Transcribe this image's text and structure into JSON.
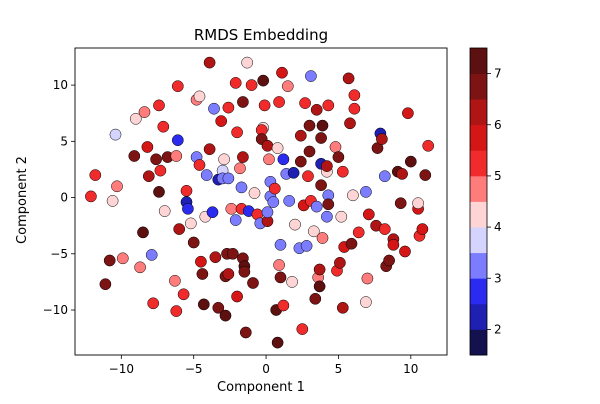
{
  "chart_data": {
    "type": "scatter",
    "title": "RMDS Embedding",
    "xlabel": "Component 1",
    "ylabel": "Component 2",
    "xlim": [
      -13.2,
      12.5
    ],
    "ylim": [
      -14.0,
      13.3
    ],
    "xticks": [
      -10,
      -5,
      0,
      5,
      10
    ],
    "xtick_labels": [
      "−10",
      "−5",
      "0",
      "5",
      "10"
    ],
    "yticks": [
      -10,
      -5,
      0,
      5,
      10
    ],
    "ytick_labels": [
      "−10",
      "−5",
      "0",
      "5",
      "10"
    ],
    "grid": false,
    "colorbar": {
      "colormap": "seismic (discrete)",
      "range": [
        1.5,
        7.5
      ],
      "ticks": [
        2,
        3,
        4,
        5,
        6,
        7
      ],
      "tick_labels": [
        "2",
        "3",
        "4",
        "5",
        "6",
        "7"
      ],
      "bands": [
        "#13124f",
        "#1f1fb2",
        "#2b2bef",
        "#7c7cff",
        "#d4d4ff",
        "#ffd4d4",
        "#ff7c7c",
        "#ef2b2b",
        "#d41616",
        "#b01515",
        "#7d1414",
        "#5c1010"
      ]
    },
    "points": [
      [
        -12.1,
        0.1,
        5.0
      ],
      [
        -11.8,
        2.0,
        5.2
      ],
      [
        -11.1,
        -7.7,
        6.6
      ],
      [
        -10.8,
        -5.6,
        6.9
      ],
      [
        -10.4,
        5.6,
        3.8
      ],
      [
        -10.6,
        -0.3,
        4.3
      ],
      [
        -10.3,
        1.0,
        4.8
      ],
      [
        -9.9,
        -5.4,
        4.6
      ],
      [
        -9.1,
        3.7,
        6.8
      ],
      [
        -9.0,
        7.0,
        4.3
      ],
      [
        -8.7,
        -6.2,
        4.8
      ],
      [
        -8.5,
        -3.1,
        7.1
      ],
      [
        -8.4,
        7.6,
        4.5
      ],
      [
        -8.2,
        4.5,
        5.8
      ],
      [
        -8.1,
        1.9,
        6.2
      ],
      [
        -7.9,
        -5.1,
        3.0
      ],
      [
        -7.8,
        -9.4,
        5.0
      ],
      [
        -7.6,
        3.4,
        6.8
      ],
      [
        -7.4,
        8.2,
        5.2
      ],
      [
        -7.4,
        0.5,
        7.0
      ],
      [
        -7.3,
        2.4,
        5.0
      ],
      [
        -7.1,
        6.3,
        5.2
      ],
      [
        -7.0,
        -1.2,
        4.3
      ],
      [
        -6.8,
        3.6,
        6.8
      ],
      [
        -6.3,
        -7.4,
        4.7
      ],
      [
        -6.1,
        9.9,
        5.0
      ],
      [
        -6.1,
        5.1,
        2.9
      ],
      [
        -6.2,
        3.7,
        4.5
      ],
      [
        -6.2,
        -10.1,
        5.2
      ],
      [
        -6.0,
        -2.8,
        6.4
      ],
      [
        -5.7,
        -8.6,
        5.0
      ],
      [
        -5.5,
        0.6,
        5.1
      ],
      [
        -5.2,
        -2.3,
        4.4
      ],
      [
        -5.5,
        -0.4,
        2.1
      ],
      [
        -5.4,
        -1.0,
        2.6
      ],
      [
        -5.0,
        -4.0,
        6.6
      ],
      [
        -4.8,
        8.7,
        4.7
      ],
      [
        -4.8,
        3.6,
        3.0
      ],
      [
        -4.6,
        2.9,
        5.1
      ],
      [
        -4.6,
        9.0,
        4.4
      ],
      [
        -4.5,
        -5.7,
        5.5
      ],
      [
        -4.4,
        -6.8,
        6.8
      ],
      [
        -4.3,
        -9.5,
        7.0
      ],
      [
        -4.2,
        -1.7,
        4.2
      ],
      [
        -4.1,
        2.0,
        3.0
      ],
      [
        -3.9,
        12.0,
        6.1
      ],
      [
        -3.9,
        4.3,
        6.4
      ],
      [
        -3.7,
        -1.3,
        2.8
      ],
      [
        -3.6,
        7.9,
        3.4
      ],
      [
        -3.5,
        -5.3,
        6.3
      ],
      [
        -3.3,
        1.6,
        2.1
      ],
      [
        -3.3,
        -9.8,
        6.8
      ],
      [
        -3.1,
        6.8,
        5.8
      ],
      [
        -3.0,
        2.4,
        3.5
      ],
      [
        -3.0,
        1.7,
        3.0
      ],
      [
        -2.9,
        3.4,
        4.3
      ],
      [
        -2.8,
        -7.0,
        6.8
      ],
      [
        -2.8,
        -10.5,
        7.0
      ],
      [
        -2.7,
        -5.0,
        6.9
      ],
      [
        -2.6,
        8.0,
        5.0
      ],
      [
        -2.6,
        1.7,
        3.0
      ],
      [
        -2.6,
        -6.8,
        6.4
      ],
      [
        -2.4,
        -1.0,
        4.6
      ],
      [
        -2.3,
        -5.0,
        6.7
      ],
      [
        -2.1,
        -2.0,
        3.2
      ],
      [
        -2.1,
        10.2,
        5.3
      ],
      [
        -2.0,
        -8.8,
        5.9
      ],
      [
        -2.0,
        5.8,
        5.1
      ],
      [
        -1.8,
        2.6,
        4.6
      ],
      [
        -1.7,
        -1.0,
        5.0
      ],
      [
        -1.7,
        0.9,
        3.0
      ],
      [
        -1.6,
        -5.4,
        6.9
      ],
      [
        -1.6,
        3.6,
        6.4
      ],
      [
        -1.6,
        8.5,
        6.8
      ],
      [
        -1.5,
        -6.1,
        7.2
      ],
      [
        -1.5,
        -6.6,
        6.6
      ],
      [
        -1.4,
        -12.0,
        6.9
      ],
      [
        -1.3,
        12.0,
        4.3
      ],
      [
        -1.2,
        -1.2,
        2.8
      ],
      [
        -1.0,
        10.0,
        5.1
      ],
      [
        -0.9,
        -7.6,
        6.9
      ],
      [
        -0.8,
        0.4,
        4.4
      ],
      [
        -0.6,
        -1.5,
        5.2
      ],
      [
        -0.4,
        -2.3,
        3.0
      ],
      [
        -0.2,
        6.2,
        4.4
      ],
      [
        -0.3,
        6.0,
        5.1
      ],
      [
        -0.3,
        5.2,
        6.8
      ],
      [
        -0.2,
        10.4,
        7.0
      ],
      [
        -0.1,
        8.2,
        5.3
      ],
      [
        0.1,
        -2.1,
        6.3
      ],
      [
        0.1,
        4.6,
        6.1
      ],
      [
        0.1,
        -1.3,
        3.0
      ],
      [
        0.2,
        3.4,
        4.5
      ],
      [
        0.3,
        0.1,
        3.0
      ],
      [
        0.3,
        1.4,
        3.0
      ],
      [
        0.5,
        -0.4,
        3.0
      ],
      [
        0.6,
        0.8,
        5.2
      ],
      [
        0.7,
        -10.0,
        7.0
      ],
      [
        0.8,
        4.4,
        4.4
      ],
      [
        0.8,
        -12.9,
        7.2
      ],
      [
        0.9,
        -6.0,
        4.5
      ],
      [
        1.0,
        -4.2,
        3.0
      ],
      [
        0.9,
        8.5,
        5.2
      ],
      [
        1.0,
        -7.1,
        6.8
      ],
      [
        1.1,
        11.1,
        5.5
      ],
      [
        1.2,
        -9.6,
        5.0
      ],
      [
        1.2,
        3.4,
        2.8
      ],
      [
        1.4,
        2.1,
        3.0
      ],
      [
        1.5,
        9.9,
        4.7
      ],
      [
        1.6,
        -0.3,
        3.0
      ],
      [
        1.8,
        -7.5,
        4.3
      ],
      [
        1.9,
        2.2,
        2.0
      ],
      [
        2.0,
        -2.4,
        4.4
      ],
      [
        2.3,
        -4.5,
        3.0
      ],
      [
        2.4,
        3.2,
        6.6
      ],
      [
        2.4,
        5.5,
        6.4
      ],
      [
        2.5,
        -11.7,
        5.0
      ],
      [
        2.6,
        -0.7,
        5.6
      ],
      [
        2.7,
        8.4,
        5.2
      ],
      [
        2.8,
        -4.3,
        3.0
      ],
      [
        2.9,
        1.9,
        5.0
      ],
      [
        3.0,
        4.1,
        6.8
      ],
      [
        3.0,
        6.4,
        6.8
      ],
      [
        3.1,
        -0.3,
        5.0
      ],
      [
        3.1,
        10.8,
        3.0
      ],
      [
        3.3,
        -3.0,
        4.3
      ],
      [
        3.4,
        -9.0,
        6.8
      ],
      [
        3.5,
        -0.8,
        3.0
      ],
      [
        3.5,
        7.8,
        6.1
      ],
      [
        3.6,
        -7.1,
        4.8
      ],
      [
        3.7,
        -7.9,
        7.2
      ],
      [
        3.7,
        -6.4,
        6.2
      ],
      [
        3.8,
        5.3,
        6.8
      ],
      [
        3.8,
        3.0,
        2.0
      ],
      [
        3.8,
        1.1,
        6.6
      ],
      [
        3.9,
        -3.6,
        4.6
      ],
      [
        3.9,
        6.4,
        7.0
      ],
      [
        4.2,
        2.3,
        4.4
      ],
      [
        4.2,
        -1.7,
        3.0
      ],
      [
        4.2,
        2.8,
        6.4
      ],
      [
        4.3,
        8.2,
        5.1
      ],
      [
        4.3,
        0.2,
        3.0
      ],
      [
        4.3,
        -0.6,
        6.5
      ],
      [
        4.8,
        4.5,
        4.5
      ],
      [
        4.9,
        -6.5,
        5.3
      ],
      [
        5.0,
        3.6,
        6.8
      ],
      [
        5.1,
        -5.8,
        6.3
      ],
      [
        5.2,
        -1.7,
        4.4
      ],
      [
        5.3,
        2.3,
        5.2
      ],
      [
        5.3,
        -9.8,
        6.3
      ],
      [
        5.4,
        -4.4,
        5.7
      ],
      [
        5.7,
        10.6,
        6.0
      ],
      [
        5.8,
        6.6,
        6.4
      ],
      [
        5.9,
        -4.1,
        6.9
      ],
      [
        6.0,
        0.2,
        4.4
      ],
      [
        6.1,
        7.9,
        5.1
      ],
      [
        6.1,
        9.1,
        5.0
      ],
      [
        6.4,
        -3.1,
        5.2
      ],
      [
        6.9,
        0.5,
        3.0
      ],
      [
        6.9,
        -9.3,
        4.4
      ],
      [
        7.0,
        -7.2,
        4.8
      ],
      [
        7.1,
        -1.5,
        5.8
      ],
      [
        7.6,
        -2.5,
        6.2
      ],
      [
        7.7,
        4.4,
        6.9
      ],
      [
        7.9,
        5.7,
        2.0
      ],
      [
        8.0,
        5.2,
        6.3
      ],
      [
        8.2,
        -2.8,
        5.0
      ],
      [
        8.2,
        1.9,
        3.0
      ],
      [
        8.3,
        -6.1,
        6.5
      ],
      [
        8.5,
        -5.6,
        6.9
      ],
      [
        8.8,
        -3.7,
        6.3
      ],
      [
        8.8,
        -4.2,
        5.6
      ],
      [
        9.1,
        2.3,
        7.0
      ],
      [
        9.3,
        -0.5,
        6.8
      ],
      [
        9.4,
        2.1,
        6.2
      ],
      [
        9.6,
        -4.8,
        5.5
      ],
      [
        9.8,
        7.5,
        5.6
      ],
      [
        10.0,
        3.2,
        7.1
      ],
      [
        10.5,
        -1.0,
        5.8
      ],
      [
        10.5,
        -0.5,
        4.3
      ],
      [
        10.6,
        -3.4,
        5.0
      ],
      [
        10.8,
        -2.8,
        5.7
      ],
      [
        11.0,
        2.0,
        6.6
      ],
      [
        11.2,
        4.6,
        5.0
      ]
    ]
  }
}
